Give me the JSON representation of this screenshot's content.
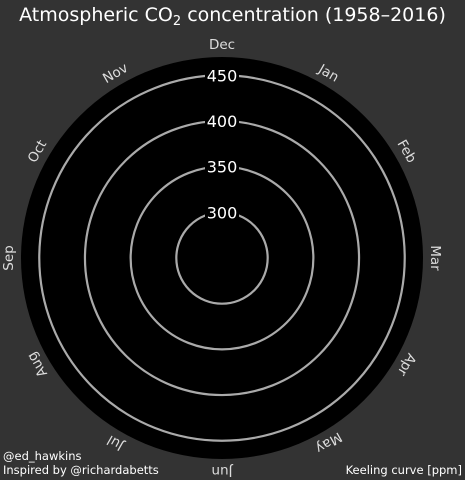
{
  "chart_data": {
    "type": "polar-line",
    "title_prefix": "Atmospheric CO",
    "title_subscript": "2",
    "title_suffix": " concentration (1958–2016)",
    "angular_labels": [
      "Jan",
      "Feb",
      "Mar",
      "Apr",
      "May",
      "Jun",
      "Jul",
      "Aug",
      "Sep",
      "Oct",
      "Nov",
      "Dec"
    ],
    "radial_ticks": [
      300,
      350,
      400,
      450
    ],
    "radial_range": [
      250,
      470
    ],
    "series": []
  },
  "footer": {
    "credit": "@ed_hawkins",
    "inspired": "Inspired by @richardabetts",
    "source": "Keeling curve [ppm]"
  },
  "colors": {
    "background": "#333333",
    "plot": "#000000",
    "ring": "#aaaaaa",
    "text": "#ffffff",
    "month_label": "#dddddd"
  }
}
